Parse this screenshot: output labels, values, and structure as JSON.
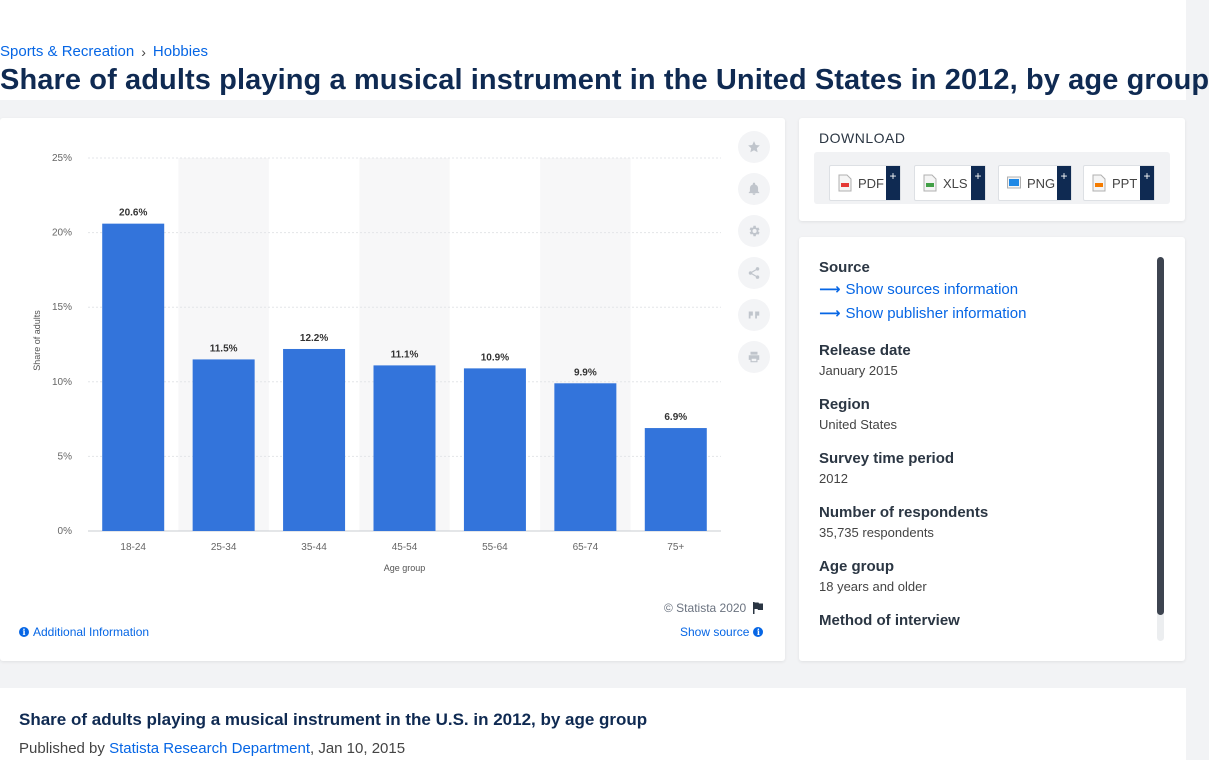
{
  "breadcrumb": [
    {
      "label": "Sports & Recreation"
    },
    {
      "label": "Hobbies"
    }
  ],
  "breadcrumb_sep": "›",
  "page_title": "Share of adults playing a musical instrument in the United States in 2012, by age group",
  "chart_data": {
    "type": "bar",
    "categories": [
      "18-24",
      "25-34",
      "35-44",
      "45-54",
      "55-64",
      "65-74",
      "75+"
    ],
    "values": [
      20.6,
      11.5,
      12.2,
      11.1,
      10.9,
      9.9,
      6.9
    ],
    "data_labels": [
      "20.6%",
      "11.5%",
      "12.2%",
      "11.1%",
      "10.9%",
      "9.9%",
      "6.9%"
    ],
    "yticks": [
      0,
      5,
      10,
      15,
      20,
      25
    ],
    "ytick_labels": [
      "0%",
      "5%",
      "10%",
      "15%",
      "20%",
      "25%"
    ],
    "ylim": [
      0,
      25
    ],
    "xlabel": "Age group",
    "ylabel": "Share of adults",
    "bar_color": "#3374db",
    "grid": true
  },
  "tools": [
    "star-icon",
    "bell-icon",
    "gear-icon",
    "share-icon",
    "quote-icon",
    "print-icon"
  ],
  "copyright": "© Statista 2020",
  "additional_info": "Additional Information",
  "show_source": "Show source",
  "download": {
    "title": "DOWNLOAD",
    "buttons": [
      {
        "label": "PDF",
        "icon": "pdf-file-icon",
        "color": "#e53935"
      },
      {
        "label": "XLS",
        "icon": "xls-file-icon",
        "color": "#43a047"
      },
      {
        "label": "PNG",
        "icon": "png-file-icon",
        "color": "#1e88e5"
      },
      {
        "label": "PPT",
        "icon": "ppt-file-icon",
        "color": "#f57c00"
      }
    ],
    "plus": "+"
  },
  "details": {
    "source_label": "Source",
    "show_sources": "Show sources information",
    "show_publisher": "Show publisher information",
    "release_date_label": "Release date",
    "release_date": "January 2015",
    "region_label": "Region",
    "region": "United States",
    "survey_period_label": "Survey time period",
    "survey_period": "2012",
    "respondents_label": "Number of respondents",
    "respondents": "35,735 respondents",
    "age_group_label": "Age group",
    "age_group": "18 years and older",
    "method_label": "Method of interview"
  },
  "bottom": {
    "title": "Share of adults playing a musical instrument in the U.S. in 2012, by age group",
    "published_prefix": "Published by",
    "publisher": "Statista Research Department",
    "date": ", Jan 10, 2015"
  }
}
